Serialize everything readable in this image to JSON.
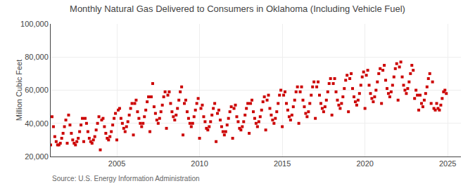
{
  "chart_data": {
    "type": "scatter",
    "title": "Monthly Natural Gas Delivered to Consumers in Oklahoma (Including Vehicle Fuel)",
    "ylabel": "Million Cubic Feet",
    "source": "Source: U.S. Energy Information Administration",
    "color": "#cc0000",
    "marker": "square",
    "grid": true,
    "xlim": [
      2001.0,
      2025.8
    ],
    "xticks": [
      2005,
      2010,
      2015,
      2020,
      2025
    ],
    "ylim": [
      20000,
      100000
    ],
    "yticks": [
      {
        "value": 20000,
        "label": "20,000"
      },
      {
        "value": 40000,
        "label": "40,000"
      },
      {
        "value": 60000,
        "label": "60,000"
      },
      {
        "value": 80000,
        "label": "80,000"
      },
      {
        "value": 100000,
        "label": "100,000"
      }
    ],
    "x": [
      2001,
      2001.0833333333333,
      2001.1666666666667,
      2001.25,
      2001.3333333333333,
      2001.4166666666667,
      2001.5,
      2001.5833333333333,
      2001.6666666666667,
      2001.75,
      2001.8333333333333,
      2001.9166666666667,
      2002,
      2002.0833333333333,
      2002.1666666666667,
      2002.25,
      2002.3333333333333,
      2002.4166666666667,
      2002.5,
      2002.5833333333333,
      2002.6666666666667,
      2002.75,
      2002.8333333333333,
      2002.9166666666667,
      2003,
      2003.0833333333333,
      2003.1666666666667,
      2003.25,
      2003.3333333333333,
      2003.4166666666667,
      2003.5,
      2003.5833333333333,
      2003.6666666666667,
      2003.75,
      2003.8333333333333,
      2003.9166666666667,
      2004,
      2004.0833333333333,
      2004.1666666666667,
      2004.25,
      2004.3333333333333,
      2004.4166666666667,
      2004.5,
      2004.5833333333333,
      2004.6666666666667,
      2004.75,
      2004.8333333333333,
      2004.9166666666667,
      2005,
      2005.0833333333333,
      2005.1666666666667,
      2005.25,
      2005.3333333333333,
      2005.4166666666667,
      2005.5,
      2005.5833333333333,
      2005.6666666666667,
      2005.75,
      2005.8333333333333,
      2005.9166666666667,
      2006,
      2006.0833333333333,
      2006.1666666666667,
      2006.25,
      2006.3333333333333,
      2006.4166666666667,
      2006.5,
      2006.5833333333333,
      2006.6666666666667,
      2006.75,
      2006.8333333333333,
      2006.9166666666667,
      2007,
      2007.0833333333333,
      2007.1666666666667,
      2007.25,
      2007.3333333333333,
      2007.4166666666667,
      2007.5,
      2007.5833333333333,
      2007.6666666666667,
      2007.75,
      2007.8333333333333,
      2007.9166666666667,
      2008,
      2008.0833333333333,
      2008.1666666666667,
      2008.25,
      2008.3333333333333,
      2008.4166666666667,
      2008.5,
      2008.5833333333333,
      2008.6666666666667,
      2008.75,
      2008.8333333333333,
      2008.9166666666667,
      2009,
      2009.0833333333333,
      2009.1666666666667,
      2009.25,
      2009.3333333333333,
      2009.4166666666667,
      2009.5,
      2009.5833333333333,
      2009.6666666666667,
      2009.75,
      2009.8333333333333,
      2009.9166666666667,
      2010,
      2010.0833333333333,
      2010.1666666666667,
      2010.25,
      2010.3333333333333,
      2010.4166666666667,
      2010.5,
      2010.5833333333333,
      2010.6666666666667,
      2010.75,
      2010.8333333333333,
      2010.9166666666667,
      2011,
      2011.0833333333333,
      2011.1666666666667,
      2011.25,
      2011.3333333333333,
      2011.4166666666667,
      2011.5,
      2011.5833333333333,
      2011.6666666666667,
      2011.75,
      2011.8333333333333,
      2011.9166666666667,
      2012,
      2012.0833333333333,
      2012.1666666666667,
      2012.25,
      2012.3333333333333,
      2012.4166666666667,
      2012.5,
      2012.5833333333333,
      2012.6666666666667,
      2012.75,
      2012.8333333333333,
      2012.9166666666667,
      2013,
      2013.0833333333333,
      2013.1666666666667,
      2013.25,
      2013.3333333333333,
      2013.4166666666667,
      2013.5,
      2013.5833333333333,
      2013.6666666666667,
      2013.75,
      2013.8333333333333,
      2013.9166666666667,
      2014,
      2014.0833333333333,
      2014.1666666666667,
      2014.25,
      2014.3333333333333,
      2014.4166666666667,
      2014.5,
      2014.5833333333333,
      2014.6666666666667,
      2014.75,
      2014.8333333333333,
      2014.9166666666667,
      2015,
      2015.0833333333333,
      2015.1666666666667,
      2015.25,
      2015.3333333333333,
      2015.4166666666667,
      2015.5,
      2015.5833333333333,
      2015.6666666666667,
      2015.75,
      2015.8333333333333,
      2015.9166666666667,
      2016,
      2016.0833333333333,
      2016.1666666666667,
      2016.25,
      2016.3333333333333,
      2016.4166666666667,
      2016.5,
      2016.5833333333333,
      2016.6666666666667,
      2016.75,
      2016.8333333333333,
      2016.9166666666667,
      2017,
      2017.0833333333333,
      2017.1666666666667,
      2017.25,
      2017.3333333333333,
      2017.4166666666667,
      2017.5,
      2017.5833333333333,
      2017.6666666666667,
      2017.75,
      2017.8333333333333,
      2017.9166666666667,
      2018,
      2018.0833333333333,
      2018.1666666666667,
      2018.25,
      2018.3333333333333,
      2018.4166666666667,
      2018.5,
      2018.5833333333333,
      2018.6666666666667,
      2018.75,
      2018.8333333333333,
      2018.9166666666667,
      2019,
      2019.0833333333333,
      2019.1666666666667,
      2019.25,
      2019.3333333333333,
      2019.4166666666667,
      2019.5,
      2019.5833333333333,
      2019.6666666666667,
      2019.75,
      2019.8333333333333,
      2019.9166666666667,
      2020,
      2020.0833333333333,
      2020.1666666666667,
      2020.25,
      2020.3333333333333,
      2020.4166666666667,
      2020.5,
      2020.5833333333333,
      2020.6666666666667,
      2020.75,
      2020.8333333333333,
      2020.9166666666667,
      2021,
      2021.0833333333333,
      2021.1666666666667,
      2021.25,
      2021.3333333333333,
      2021.4166666666667,
      2021.5,
      2021.5833333333333,
      2021.6666666666667,
      2021.75,
      2021.8333333333333,
      2021.9166666666667,
      2022,
      2022.0833333333333,
      2022.1666666666667,
      2022.25,
      2022.3333333333333,
      2022.4166666666667,
      2022.5,
      2022.5833333333333,
      2022.6666666666667,
      2022.75,
      2022.8333333333333,
      2022.9166666666667,
      2023,
      2023.0833333333333,
      2023.1666666666667,
      2023.25,
      2023.3333333333333,
      2023.4166666666667,
      2023.5,
      2023.5833333333333,
      2023.6666666666667,
      2023.75,
      2023.8333333333333,
      2023.9166666666667,
      2024,
      2024.0833333333333,
      2024.1666666666667,
      2024.25,
      2024.3333333333333,
      2024.4166666666667,
      2024.5,
      2024.5833333333333,
      2024.6666666666667,
      2024.75,
      2024.8333333333333,
      2024.9166666666667
    ],
    "values": [
      27000,
      44000,
      38000,
      32000,
      29000,
      27000,
      27000,
      28000,
      31000,
      34000,
      38000,
      42000,
      28000,
      45000,
      39000,
      34000,
      30000,
      28000,
      27000,
      29000,
      31000,
      35000,
      39000,
      43000,
      29000,
      43000,
      40000,
      35000,
      31000,
      29000,
      28000,
      30000,
      32000,
      36000,
      40000,
      44000,
      24000,
      42000,
      43000,
      38000,
      34000,
      31000,
      30000,
      32000,
      35000,
      39000,
      43000,
      46000,
      30000,
      48000,
      49000,
      43000,
      40000,
      37000,
      35000,
      38000,
      41000,
      45000,
      49000,
      52000,
      33000,
      52000,
      54000,
      47000,
      43000,
      40000,
      38000,
      40000,
      44000,
      48000,
      53000,
      56000,
      35000,
      56000,
      64000,
      50000,
      46000,
      42000,
      40000,
      43000,
      47000,
      51000,
      56000,
      59000,
      37000,
      57000,
      59000,
      52000,
      47000,
      44000,
      42000,
      45000,
      49000,
      54000,
      59000,
      62000,
      33000,
      52000,
      54000,
      47000,
      43000,
      40000,
      38000,
      40000,
      44000,
      48000,
      52000,
      55000,
      31000,
      49000,
      51000,
      44000,
      41000,
      37000,
      36000,
      38000,
      41000,
      45000,
      49000,
      52000,
      29000,
      46000,
      48000,
      42000,
      38000,
      35000,
      33000,
      35000,
      39000,
      43000,
      47000,
      50000,
      31000,
      49000,
      51000,
      44000,
      41000,
      37000,
      36000,
      38000,
      41000,
      45000,
      49000,
      52000,
      34000,
      52000,
      54000,
      47000,
      43000,
      40000,
      38000,
      41000,
      44000,
      48000,
      53000,
      56000,
      36000,
      54000,
      57000,
      49000,
      45000,
      42000,
      40000,
      43000,
      47000,
      52000,
      57000,
      60000,
      38000,
      57000,
      59000,
      52000,
      48000,
      44000,
      42000,
      45000,
      50000,
      54000,
      59000,
      62000,
      40000,
      59000,
      62000,
      54000,
      50000,
      46000,
      44000,
      47000,
      52000,
      57000,
      62000,
      65000,
      43000,
      62000,
      65000,
      57000,
      52000,
      49000,
      47000,
      50000,
      54000,
      59000,
      64000,
      67000,
      45000,
      64000,
      67000,
      59000,
      54000,
      51000,
      49000,
      52000,
      56000,
      61000,
      66000,
      69000,
      47000,
      67000,
      70000,
      61000,
      56000,
      53000,
      51000,
      54000,
      58000,
      63000,
      68000,
      71000,
      49000,
      69000,
      72000,
      63000,
      58000,
      55000,
      53000,
      56000,
      60000,
      65000,
      70000,
      73000,
      52000,
      72000,
      75000,
      66000,
      61000,
      58000,
      56000,
      59000,
      63000,
      68000,
      73000,
      76000,
      54000,
      74000,
      77000,
      68000,
      63000,
      60000,
      58000,
      61000,
      65000,
      70000,
      75000,
      72000,
      55000,
      60000,
      57000,
      48000,
      57000,
      52000,
      50000,
      54000,
      58000,
      62000,
      67000,
      70000,
      52000,
      65000,
      49000,
      48000,
      52000,
      49000,
      48000,
      51000,
      55000,
      59000,
      60000,
      58000
    ]
  }
}
